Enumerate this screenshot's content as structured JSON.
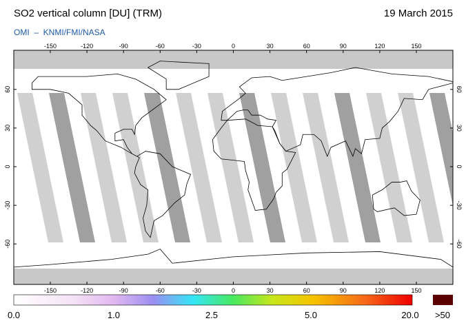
{
  "header": {
    "title": "SO2 vertical column [DU] (TRM)",
    "date": "19 March 2015",
    "credit": "OMI  –  KNMI/FMI/NASA"
  },
  "map": {
    "lon_ticks": [
      -150,
      -120,
      -90,
      -60,
      -30,
      0,
      30,
      60,
      90,
      120,
      150
    ],
    "lat_ticks": [
      60,
      30,
      0,
      -30,
      -60
    ]
  },
  "colorbar": {
    "labels": [
      "0.0",
      "1.0",
      "2.5",
      "5.0",
      "20.0"
    ],
    "overflow_label": ">50"
  }
}
